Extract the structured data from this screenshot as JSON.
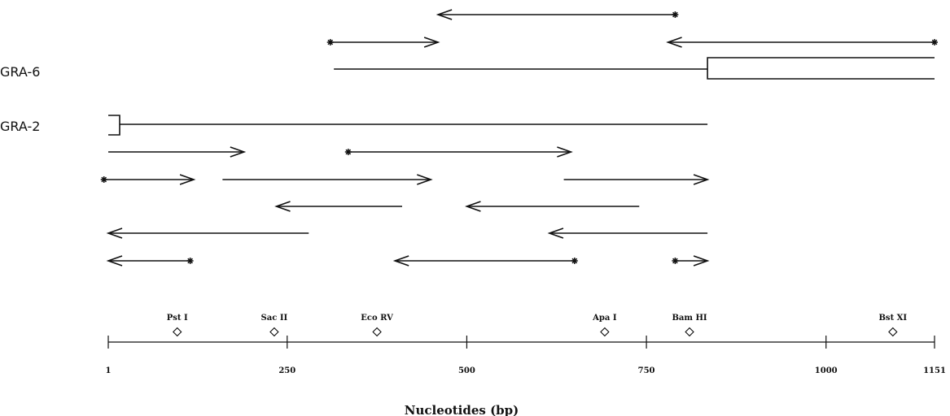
{
  "tracks": [
    {
      "label": "GRA-6",
      "start": 315,
      "end": 1151,
      "box_from": 835
    },
    {
      "label": "GRA-2",
      "start": 1,
      "end": 835,
      "bracket": true
    }
  ],
  "sequencing_runs": [
    {
      "from": 460,
      "to": 790,
      "direction": "left",
      "start_mark": true
    },
    {
      "from": 310,
      "to": 460,
      "direction": "right",
      "start_mark": true
    },
    {
      "from": 780,
      "to": 1151,
      "direction": "left",
      "start_mark": true
    },
    {
      "from": 1,
      "to": 190,
      "direction": "right",
      "start_mark": false
    },
    {
      "from": 335,
      "to": 645,
      "direction": "right",
      "start_mark": true
    },
    {
      "from": -5,
      "to": 120,
      "direction": "right",
      "start_mark": true
    },
    {
      "from": 160,
      "to": 450,
      "direction": "right",
      "start_mark": false
    },
    {
      "from": 635,
      "to": 835,
      "direction": "right",
      "start_mark": false
    },
    {
      "from": 235,
      "to": 410,
      "direction": "left",
      "start_mark": false
    },
    {
      "from": 500,
      "to": 740,
      "direction": "left",
      "start_mark": false
    },
    {
      "from": 1,
      "to": 280,
      "direction": "left",
      "start_mark": false
    },
    {
      "from": 615,
      "to": 835,
      "direction": "left",
      "start_mark": false
    },
    {
      "from": 1,
      "to": 115,
      "direction": "left",
      "start_mark": true
    },
    {
      "from": 400,
      "to": 650,
      "direction": "left",
      "start_mark": true
    },
    {
      "from": 790,
      "to": 835,
      "direction": "right",
      "start_mark": true
    }
  ],
  "restriction_sites": [
    {
      "name": "Pst I",
      "position": 97
    },
    {
      "name": "Sac II",
      "position": 232
    },
    {
      "name": "Eco RV",
      "position": 375
    },
    {
      "name": "Apa I",
      "position": 692
    },
    {
      "name": "Bam HI",
      "position": 810
    },
    {
      "name": "Bst XI",
      "position": 1093
    }
  ],
  "axis": {
    "title": "Nucleotides (bp)",
    "min": 1,
    "max": 1151,
    "ticks": [
      1,
      250,
      500,
      750,
      1000,
      1151
    ],
    "tick_labels": [
      "1",
      "250",
      "500",
      "750",
      "1000",
      "1151"
    ]
  }
}
